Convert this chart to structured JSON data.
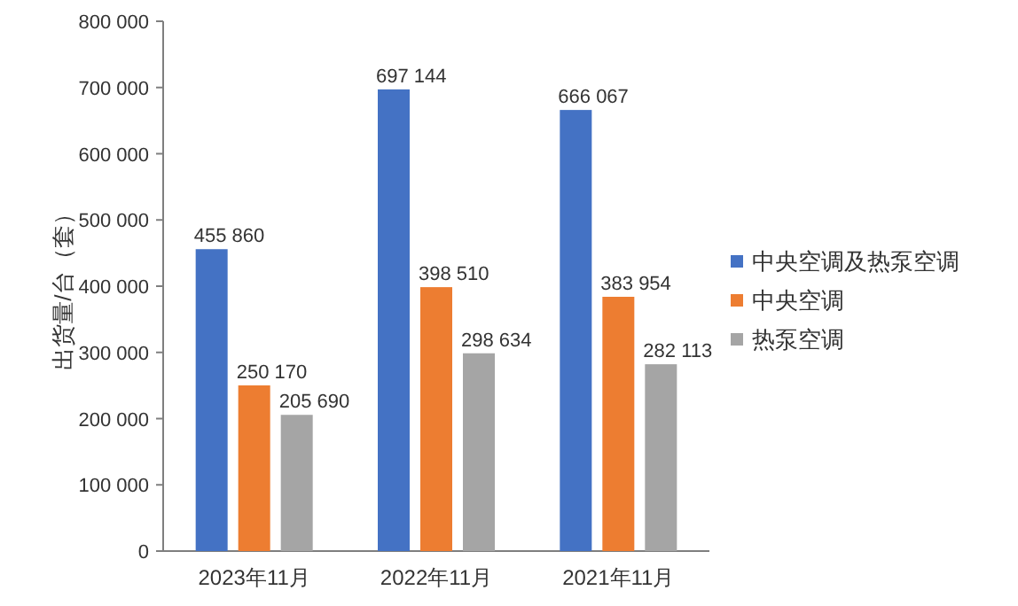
{
  "chart_data": {
    "type": "bar",
    "ylabel": "出货量/台（套）",
    "categories": [
      "2023年11月",
      "2022年11月",
      "2021年11月"
    ],
    "series": [
      {
        "name": "中央空调及热泵空调",
        "color": "#4472c4",
        "values": [
          455860,
          697144,
          666067
        ],
        "value_labels": [
          "455 860",
          "697 144",
          "666 067"
        ]
      },
      {
        "name": "中央空调",
        "color": "#ed7d31",
        "values": [
          250170,
          398510,
          383954
        ],
        "value_labels": [
          "250 170",
          "398 510",
          "383 954"
        ]
      },
      {
        "name": "热泵空调",
        "color": "#a5a5a5",
        "values": [
          205690,
          298634,
          282113
        ],
        "value_labels": [
          "205 690",
          "298 634",
          "282 113"
        ]
      }
    ],
    "ylim": [
      0,
      800000
    ],
    "yticks": [
      {
        "value": 0,
        "label": "0"
      },
      {
        "value": 100000,
        "label": "100 000"
      },
      {
        "value": 200000,
        "label": "200 000"
      },
      {
        "value": 300000,
        "label": "300 000"
      },
      {
        "value": 400000,
        "label": "400 000"
      },
      {
        "value": 500000,
        "label": "500 000"
      },
      {
        "value": 600000,
        "label": "600 000"
      },
      {
        "value": 700000,
        "label": "700 000"
      },
      {
        "value": 800000,
        "label": "800 000"
      }
    ],
    "legend": "right"
  }
}
